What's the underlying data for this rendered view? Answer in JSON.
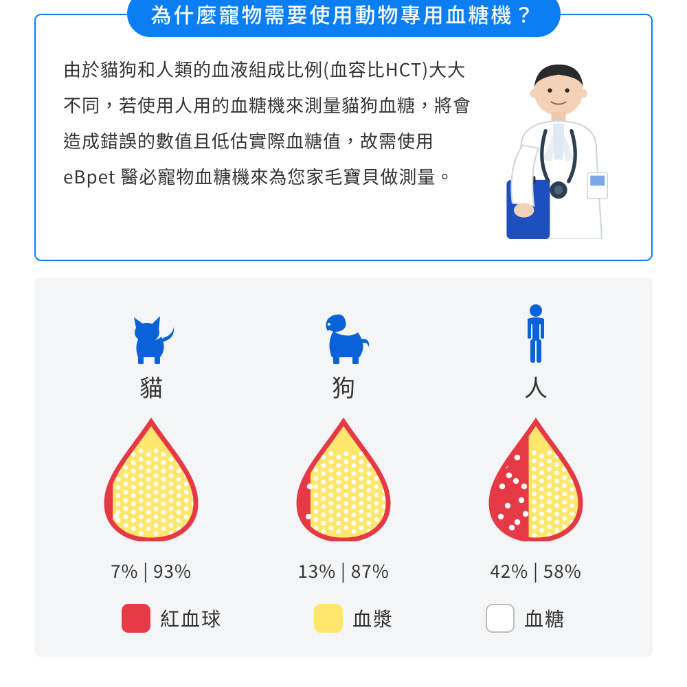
{
  "header": {
    "title": "為什麼寵物需要使用動物專用血糖機？",
    "title_bg": "#0a7ef2",
    "title_color": "#ffffff",
    "border_color": "#0a7ef2"
  },
  "description": "由於貓狗和人類的血液組成比例(血容比HCT)大大不同，若使用人用的血糖機來測量貓狗血糖，將會造成錯誤的數值且低估實際血糖值，故需使用eBpet 醫必寵物血糖機來為您家毛寶貝做測量。",
  "text_color": "#333333",
  "chart": {
    "background": "#f4f5f6",
    "icon_color": "#0a62d8",
    "drop": {
      "red_color": "#e63946",
      "plasma_color": "#ffe66d",
      "dot_color": "#ffffff",
      "outline_color": "#d1d1d1"
    },
    "species": [
      {
        "key": "cat",
        "label": "貓",
        "red_pct": 7,
        "plasma_pct": 93,
        "display": "7% | 93%"
      },
      {
        "key": "dog",
        "label": "狗",
        "red_pct": 13,
        "plasma_pct": 87,
        "display": "13% | 87%"
      },
      {
        "key": "human",
        "label": "人",
        "red_pct": 42,
        "plasma_pct": 58,
        "display": "42% | 58%"
      }
    ],
    "legend": [
      {
        "label": "紅血球",
        "color": "#e63946",
        "border": "#e63946"
      },
      {
        "label": "血漿",
        "color": "#ffe66d",
        "border": "#ffe66d"
      },
      {
        "label": "血糖",
        "color": "#ffffff",
        "border": "#bdbdbd"
      }
    ]
  }
}
